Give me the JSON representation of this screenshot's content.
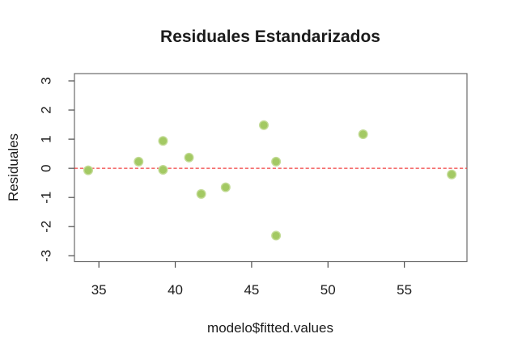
{
  "chart_data": {
    "type": "scatter",
    "title": "Residuales Estandarizados",
    "xlabel": "modelo$fitted.values",
    "ylabel": "Residuales",
    "x_ticks": [
      {
        "value": 35,
        "label": "35"
      },
      {
        "value": 40,
        "label": "40"
      },
      {
        "value": 45,
        "label": "45"
      },
      {
        "value": 50,
        "label": "50"
      },
      {
        "value": 55,
        "label": "55"
      }
    ],
    "y_ticks": [
      {
        "value": -3,
        "label": "-3"
      },
      {
        "value": -2,
        "label": "-2"
      },
      {
        "value": -1,
        "label": "-1"
      },
      {
        "value": 0,
        "label": "0"
      },
      {
        "value": 1,
        "label": "1"
      },
      {
        "value": 2,
        "label": "2"
      },
      {
        "value": 3,
        "label": "3"
      }
    ],
    "xlim": [
      33.4,
      59.1
    ],
    "ylim": [
      -3.2,
      3.25
    ],
    "grid": false,
    "legend": "none",
    "points": [
      {
        "x": 34.3,
        "y": -0.07
      },
      {
        "x": 37.6,
        "y": 0.23
      },
      {
        "x": 39.2,
        "y": 0.94
      },
      {
        "x": 39.2,
        "y": -0.05
      },
      {
        "x": 40.9,
        "y": 0.37
      },
      {
        "x": 41.7,
        "y": -0.88
      },
      {
        "x": 43.3,
        "y": -0.65
      },
      {
        "x": 45.8,
        "y": 1.48
      },
      {
        "x": 46.6,
        "y": 0.23
      },
      {
        "x": 46.6,
        "y": -2.31
      },
      {
        "x": 52.3,
        "y": 1.17
      },
      {
        "x": 58.1,
        "y": -0.21
      }
    ],
    "reference_line": {
      "y": 0,
      "style": "dashed",
      "color": "#f04040"
    },
    "colors": {
      "point_fill": "#a3c963",
      "point_edge": "#c3db96",
      "axis": "#4d4d4d",
      "box": "#6b6b6b",
      "text": "#1b1b1b",
      "background": "#ffffff"
    }
  }
}
